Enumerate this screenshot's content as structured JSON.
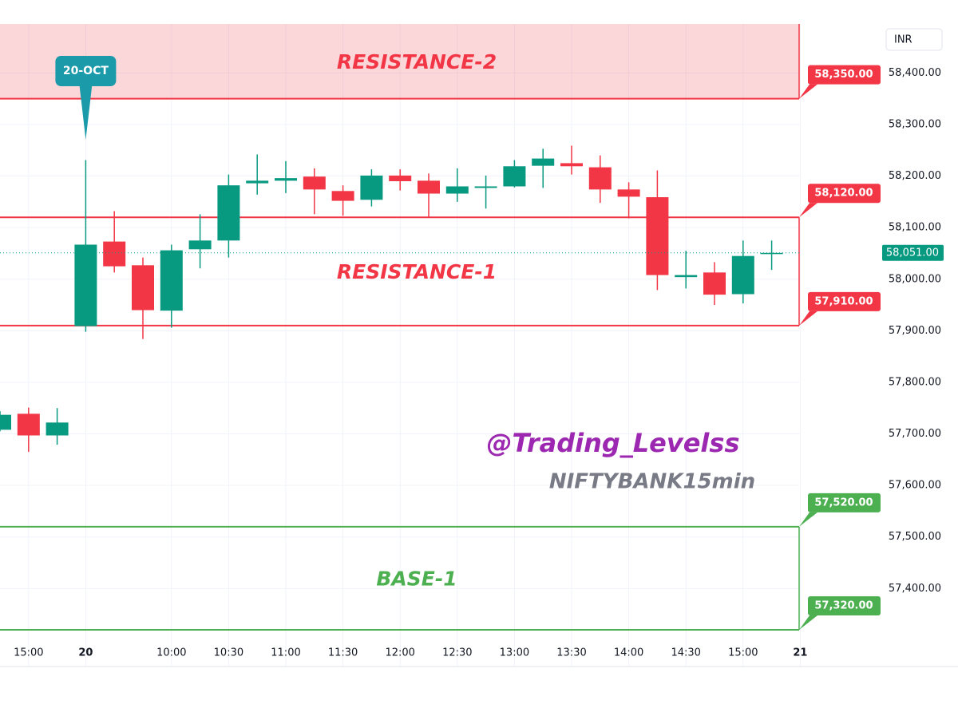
{
  "chart_data": {
    "type": "candlestick",
    "currency": "INR",
    "categories": [
      null,
      "15:00",
      null,
      "20",
      null,
      null,
      "10:00",
      null,
      "10:30",
      null,
      "11:00",
      null,
      "11:30",
      null,
      "12:00",
      null,
      "12:30",
      null,
      "13:00",
      null,
      "13:30",
      null,
      "14:00",
      null,
      "14:30",
      null,
      "15:00",
      null,
      "21"
    ],
    "open": [
      57708,
      57739,
      57697,
      57909,
      58073,
      58027,
      57939,
      58058,
      58075,
      58186,
      58191,
      58199,
      58171,
      58154,
      58201,
      58191,
      58166,
      58177,
      58180,
      58220,
      58225,
      58217,
      58174,
      58159,
      58004,
      58013,
      57971,
      58049,
      null
    ],
    "high": [
      57744,
      57751,
      57750,
      58231,
      58132,
      58042,
      58067,
      58126,
      58203,
      58242,
      58229,
      58215,
      58182,
      58213,
      58213,
      58205,
      58215,
      58201,
      58231,
      58253,
      58259,
      58240,
      58188,
      58211,
      58055,
      58033,
      58075,
      58075,
      null
    ],
    "low": [
      57705,
      57665,
      57679,
      57898,
      58013,
      57884,
      57906,
      58021,
      58042,
      58164,
      58167,
      58126,
      58123,
      58141,
      58172,
      58121,
      58150,
      58137,
      58178,
      58177,
      58203,
      58148,
      58118,
      57979,
      57982,
      57950,
      57953,
      58018,
      null
    ],
    "close": [
      57737,
      57697,
      57722,
      58067,
      58025,
      57940,
      58056,
      58075,
      58182,
      58191,
      58196,
      58174,
      58152,
      58201,
      58190,
      58166,
      58180,
      58180,
      58219,
      58234,
      58219,
      58174,
      58160,
      58008,
      58008,
      57970,
      58045,
      58051,
      null
    ],
    "up_color": "#089981",
    "down_color": "#f23645",
    "ylim": [
      57303,
      58495
    ],
    "yticks": [
      {
        "value": 57400,
        "label": "57,400.00"
      },
      {
        "value": 57500,
        "label": "57,500.00"
      },
      {
        "value": 57600,
        "label": "57,600.00"
      },
      {
        "value": 57700,
        "label": "57,700.00"
      },
      {
        "value": 57800,
        "label": "57,800.00"
      },
      {
        "value": 57900,
        "label": "57,900.00"
      },
      {
        "value": 58000,
        "label": "58,000.00"
      },
      {
        "value": 58100,
        "label": "58,100.00"
      },
      {
        "value": 58200,
        "label": "58,200.00"
      },
      {
        "value": 58300,
        "label": "58,300.00"
      },
      {
        "value": 58400,
        "label": "58,400.00"
      }
    ],
    "grid": true,
    "last_price": 58051,
    "last_price_label": "58,051.00",
    "levels": [
      {
        "label": "RESISTANCE-2",
        "color": "#f23645",
        "shaded": true,
        "lower": 58350,
        "lower_label": "58,350.00"
      },
      {
        "label": "RESISTANCE-1",
        "color": "#f23645",
        "shaded": false,
        "lower": 57910,
        "lower_label": "57,910.00",
        "upper": 58120,
        "upper_label": "58,120.00"
      },
      {
        "label": "BASE-1",
        "color": "#4caf50",
        "shaded": false,
        "lower": 57320,
        "lower_label": "57,320.00",
        "upper": 57520,
        "upper_label": "57,520.00"
      }
    ],
    "annotation": {
      "text": "20-OCT",
      "at": "20"
    },
    "watermark": [
      "@Trading_Levelss",
      "NIFTYBANK15min"
    ]
  }
}
